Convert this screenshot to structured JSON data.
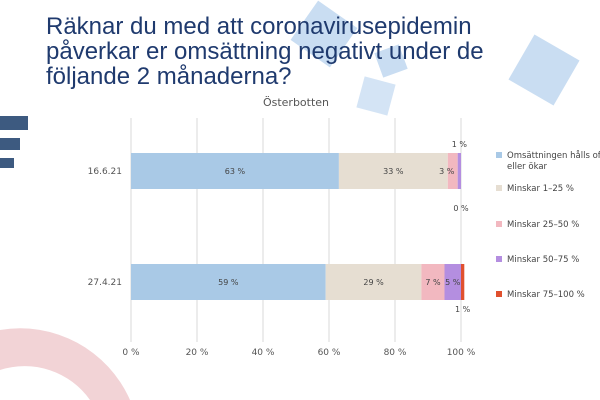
{
  "title": "Räknar du med att coronavirusepidemin påverkar er omsättning negativt under de följande 2 månaderna?",
  "colors": {
    "title": "#1f3a6e",
    "deco_light_blue": "#c9ddf2",
    "deco_navy": "#3d5a80",
    "deco_pink": "#f2d3d6"
  },
  "chart_data": {
    "type": "bar",
    "orientation": "horizontal",
    "stacked": true,
    "title": "Österbotten",
    "categories": [
      "16.6.21",
      "27.4.21"
    ],
    "xlim": [
      0,
      100
    ],
    "x_ticks": [
      "0 %",
      "20 %",
      "40 %",
      "60 %",
      "80 %",
      "100 %"
    ],
    "grid": true,
    "legend_position": "right",
    "series": [
      {
        "name": "Omsättningen hålls oförändrad eller ökar",
        "values": [
          63,
          59
        ],
        "labels": [
          "63 %",
          "59 %"
        ],
        "color": "#a9c9e6"
      },
      {
        "name": "Minskar 1–25 %",
        "values": [
          33,
          29
        ],
        "labels": [
          "33 %",
          "29 %"
        ],
        "color": "#e6ded2"
      },
      {
        "name": "Minskar 25–50 %",
        "values": [
          3,
          7
        ],
        "labels": [
          "",
          "7 %"
        ],
        "color": "#f2b8c0"
      },
      {
        "name": "Minskar 50–75 %",
        "values": [
          1,
          5
        ],
        "labels": [
          "1 %",
          "5 %"
        ],
        "color": "#b48ee0"
      },
      {
        "name": "Minskar 75–100 %",
        "values": [
          0,
          1
        ],
        "labels": [
          "0 %",
          "1 %"
        ],
        "color": "#e0502e"
      }
    ],
    "extra_labels": [
      "3 %"
    ]
  }
}
